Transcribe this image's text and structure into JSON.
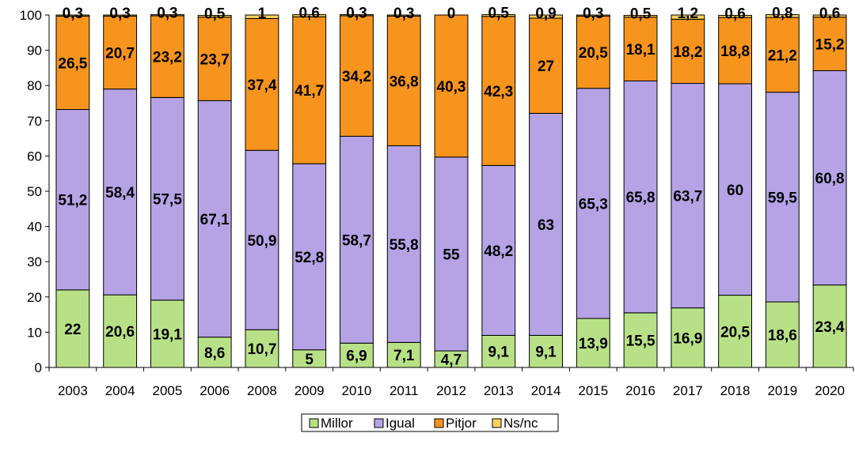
{
  "chart_data": {
    "type": "bar",
    "stacked": true,
    "categories": [
      "2003",
      "2004",
      "2005",
      "2006",
      "2008",
      "2009",
      "2010",
      "2011",
      "2012",
      "2013",
      "2014",
      "2015",
      "2016",
      "2017",
      "2018",
      "2019",
      "2020"
    ],
    "series": [
      {
        "name": "Millor",
        "color": "#b8e187",
        "values": [
          22,
          20.6,
          19.1,
          8.6,
          10.7,
          5,
          6.9,
          7.1,
          4.7,
          9.1,
          9.1,
          13.9,
          15.5,
          16.9,
          20.5,
          18.6,
          23.4
        ],
        "labels": [
          "22",
          "20,6",
          "19,1",
          "8,6",
          "10,7",
          "5",
          "6,9",
          "7,1",
          "4,7",
          "9,1",
          "9,1",
          "13,9",
          "15,5",
          "16,9",
          "20,5",
          "18,6",
          "23,4"
        ]
      },
      {
        "name": "Igual",
        "color": "#b5a3e6",
        "values": [
          51.2,
          58.4,
          57.5,
          67.1,
          50.9,
          52.8,
          58.7,
          55.8,
          55,
          48.2,
          63,
          65.3,
          65.8,
          63.7,
          60,
          59.5,
          60.8
        ],
        "labels": [
          "51,2",
          "58,4",
          "57,5",
          "67,1",
          "50,9",
          "52,8",
          "58,7",
          "55,8",
          "55",
          "48,2",
          "63",
          "65,3",
          "65,8",
          "63,7",
          "60",
          "59,5",
          "60,8"
        ]
      },
      {
        "name": "Pitjor",
        "color": "#f7941d",
        "values": [
          26.5,
          20.7,
          23.2,
          23.7,
          37.4,
          41.7,
          34.2,
          36.8,
          40.3,
          42.3,
          27,
          20.5,
          18.1,
          18.2,
          18.8,
          21.2,
          15.2
        ],
        "labels": [
          "26,5",
          "20,7",
          "23,2",
          "23,7",
          "37,4",
          "41,7",
          "34,2",
          "36,8",
          "40,3",
          "42,3",
          "27",
          "20,5",
          "18,1",
          "18,2",
          "18,8",
          "21,2",
          "15,2"
        ]
      },
      {
        "name": "Ns/nc",
        "color": "#f8d25a",
        "values": [
          0.3,
          0.3,
          0.3,
          0.5,
          1,
          0.6,
          0.3,
          0.3,
          0,
          0.5,
          0.9,
          0.3,
          0.5,
          1.2,
          0.6,
          0.8,
          0.6
        ],
        "labels": [
          "0,3",
          "0,3",
          "0,3",
          "0,5",
          "1",
          "0,6",
          "0,3",
          "0,3",
          "0",
          "0,5",
          "0,9",
          "0,3",
          "0,5",
          "1,2",
          "0,6",
          "0,8",
          "0,6"
        ]
      }
    ],
    "yticks": [
      "0",
      "10",
      "20",
      "30",
      "40",
      "50",
      "60",
      "70",
      "80",
      "90",
      "100"
    ],
    "ylim": [
      0,
      100
    ],
    "grid": false,
    "legend_position": "bottom-center"
  }
}
